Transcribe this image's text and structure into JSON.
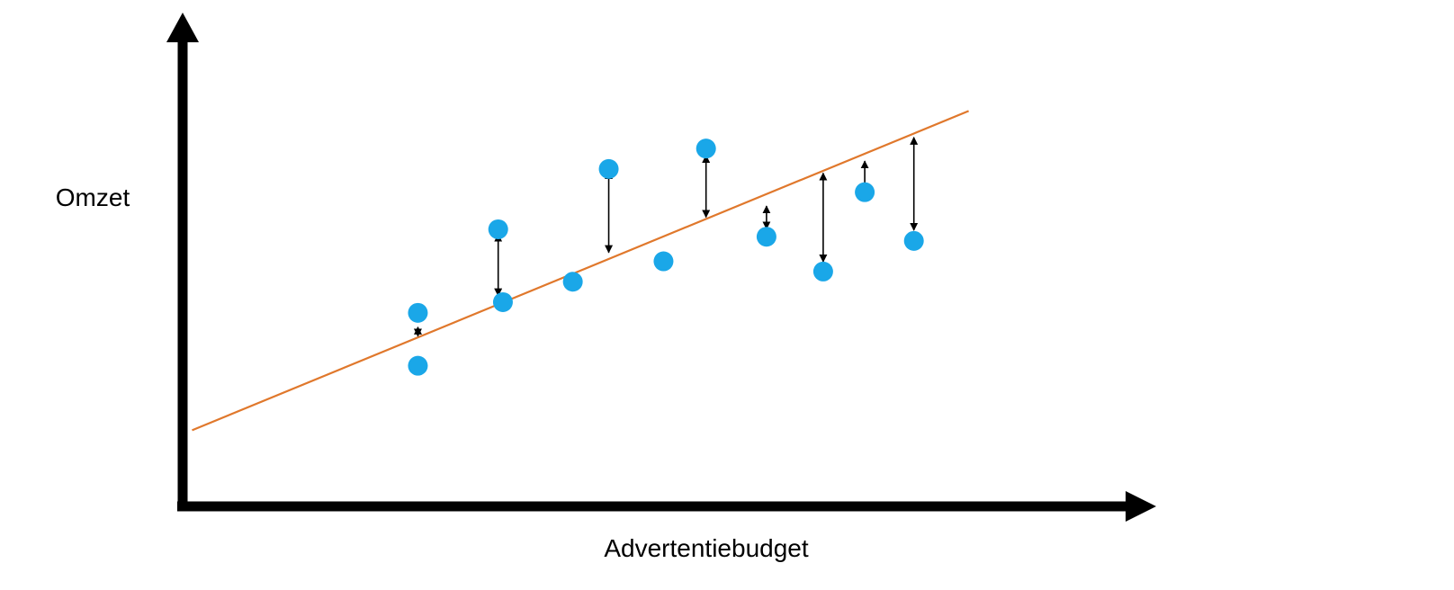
{
  "chart_data": {
    "type": "scatter",
    "title": "",
    "xlabel": "Advertentiebudget",
    "ylabel": "Omzet",
    "show_ticks": false,
    "grid": false,
    "xlim": [
      0,
      100
    ],
    "ylim": [
      0,
      100
    ],
    "points": [
      {
        "x": 24.9,
        "y": 41.7
      },
      {
        "x": 24.9,
        "y": 30.3
      },
      {
        "x": 33.4,
        "y": 59.7
      },
      {
        "x": 33.9,
        "y": 44.0
      },
      {
        "x": 41.3,
        "y": 48.4
      },
      {
        "x": 45.1,
        "y": 72.7
      },
      {
        "x": 50.9,
        "y": 52.8
      },
      {
        "x": 55.4,
        "y": 77.1
      },
      {
        "x": 61.8,
        "y": 58.1
      },
      {
        "x": 67.8,
        "y": 50.6
      },
      {
        "x": 72.2,
        "y": 67.7
      },
      {
        "x": 77.4,
        "y": 57.2
      }
    ],
    "fit_line": {
      "x": [
        1,
        83.2
      ],
      "y": [
        16.4,
        85.2
      ]
    },
    "residuals": [
      {
        "x": 24.9,
        "from": 38.6,
        "to": 36.7
      },
      {
        "x": 33.4,
        "from": 45.4,
        "to": 58.6
      },
      {
        "x": 45.1,
        "from": 54.7,
        "to": 72.1
      },
      {
        "x": 55.4,
        "from": 62.3,
        "to": 75.6
      },
      {
        "x": 61.8,
        "from": 64.7,
        "to": 59.8
      },
      {
        "x": 67.8,
        "from": 71.8,
        "to": 52.7
      },
      {
        "x": 72.2,
        "from": 74.4,
        "to": 68.0
      },
      {
        "x": 77.4,
        "from": 79.5,
        "to": 59.5
      }
    ],
    "colors": {
      "points": "#1aa7e8",
      "fit_line": "#e0782c",
      "axes": "#000000",
      "residuals": "#000000"
    }
  }
}
